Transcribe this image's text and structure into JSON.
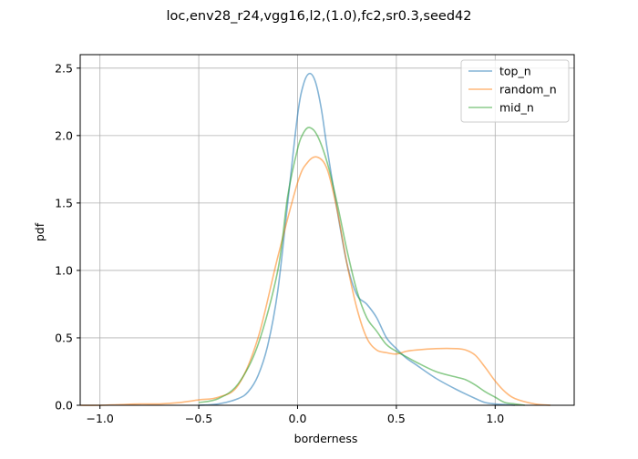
{
  "chart_data": {
    "type": "line",
    "title": "loc,env28_r24,vgg16,l2,(1.0),fc2,sr0.3,seed42",
    "xlabel": "borderness",
    "ylabel": "pdf",
    "xlim": [
      -1.1,
      1.4
    ],
    "ylim": [
      0.0,
      2.6
    ],
    "xticks": [
      -1.0,
      -0.5,
      0.0,
      0.5,
      1.0
    ],
    "xtick_labels": [
      "−1.0",
      "−0.5",
      "0.0",
      "0.5",
      "1.0"
    ],
    "yticks": [
      0.0,
      0.5,
      1.0,
      1.5,
      2.0,
      2.5
    ],
    "ytick_labels": [
      "0.0",
      "0.5",
      "1.0",
      "1.5",
      "2.0",
      "2.5"
    ],
    "grid": true,
    "legend_position": "top-right",
    "series": [
      {
        "name": "top_n",
        "color": "#1f77b4",
        "x": [
          -0.5,
          -0.4,
          -0.3,
          -0.25,
          -0.2,
          -0.15,
          -0.1,
          -0.05,
          0.0,
          0.03,
          0.06,
          0.09,
          0.12,
          0.15,
          0.2,
          0.25,
          0.3,
          0.35,
          0.4,
          0.45,
          0.5,
          0.55,
          0.6,
          0.7,
          0.8,
          0.9,
          0.95,
          1.0,
          1.05,
          1.1
        ],
        "y": [
          0.0,
          0.01,
          0.05,
          0.1,
          0.22,
          0.45,
          0.85,
          1.5,
          2.15,
          2.38,
          2.46,
          2.4,
          2.2,
          1.9,
          1.45,
          1.05,
          0.82,
          0.75,
          0.65,
          0.5,
          0.42,
          0.35,
          0.3,
          0.2,
          0.12,
          0.05,
          0.02,
          0.01,
          0.005,
          0.0
        ]
      },
      {
        "name": "random_n",
        "color": "#ff7f0e",
        "x": [
          -1.1,
          -1.0,
          -0.9,
          -0.8,
          -0.7,
          -0.6,
          -0.5,
          -0.4,
          -0.3,
          -0.2,
          -0.1,
          0.0,
          0.05,
          0.1,
          0.15,
          0.2,
          0.25,
          0.3,
          0.35,
          0.4,
          0.45,
          0.5,
          0.55,
          0.6,
          0.7,
          0.8,
          0.85,
          0.9,
          0.95,
          1.0,
          1.05,
          1.1,
          1.2,
          1.28
        ],
        "y": [
          0.0,
          0.0,
          0.005,
          0.01,
          0.01,
          0.02,
          0.04,
          0.06,
          0.15,
          0.5,
          1.1,
          1.65,
          1.8,
          1.84,
          1.75,
          1.45,
          1.05,
          0.72,
          0.5,
          0.41,
          0.39,
          0.38,
          0.4,
          0.41,
          0.42,
          0.42,
          0.41,
          0.37,
          0.28,
          0.18,
          0.1,
          0.05,
          0.01,
          0.0
        ]
      },
      {
        "name": "mid_n",
        "color": "#2ca02c",
        "x": [
          -0.5,
          -0.4,
          -0.3,
          -0.2,
          -0.1,
          -0.05,
          0.0,
          0.03,
          0.06,
          0.1,
          0.15,
          0.2,
          0.25,
          0.3,
          0.35,
          0.4,
          0.45,
          0.5,
          0.55,
          0.6,
          0.7,
          0.8,
          0.85,
          0.9,
          0.95,
          1.0,
          1.05,
          1.1,
          1.15
        ],
        "y": [
          0.02,
          0.05,
          0.16,
          0.45,
          1.0,
          1.55,
          1.9,
          2.02,
          2.06,
          2.0,
          1.8,
          1.5,
          1.15,
          0.85,
          0.65,
          0.55,
          0.45,
          0.4,
          0.36,
          0.32,
          0.25,
          0.21,
          0.19,
          0.15,
          0.1,
          0.06,
          0.02,
          0.01,
          0.0
        ]
      }
    ]
  }
}
